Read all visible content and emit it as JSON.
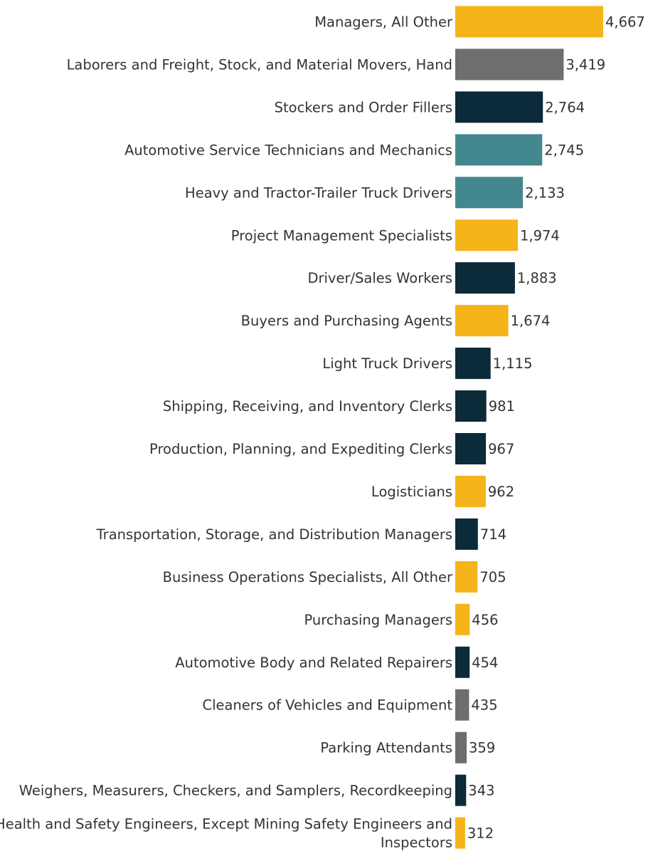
{
  "chart_data": {
    "type": "bar",
    "orientation": "horizontal",
    "title": "",
    "xlabel": "",
    "ylabel": "",
    "xlim": [
      0,
      4667
    ],
    "grid": false,
    "legend": "none",
    "categories": [
      "Managers, All Other",
      "Laborers and Freight, Stock, and Material Movers, Hand",
      "Stockers and Order Fillers",
      "Automotive Service Technicians and Mechanics",
      "Heavy and Tractor-Trailer Truck Drivers",
      "Project Management Specialists",
      "Driver/Sales Workers",
      "Buyers and Purchasing Agents",
      "Light Truck Drivers",
      "Shipping, Receiving, and Inventory Clerks",
      "Production, Planning, and Expediting Clerks",
      "Logisticians",
      "Transportation, Storage, and Distribution Managers",
      "Business Operations Specialists, All Other",
      "Purchasing Managers",
      "Automotive Body and Related Repairers",
      "Cleaners of Vehicles and Equipment",
      "Parking Attendants",
      "Weighers, Measurers, Checkers, and Samplers, Recordkeeping",
      "Health and Safety Engineers, Except Mining Safety Engineers and Inspectors"
    ],
    "values": [
      4667,
      3419,
      2764,
      2745,
      2133,
      1974,
      1883,
      1674,
      1115,
      981,
      967,
      962,
      714,
      705,
      456,
      454,
      435,
      359,
      343,
      312
    ],
    "value_labels": [
      "4,667",
      "3,419",
      "2,764",
      "2,745",
      "2,133",
      "1,974",
      "1,883",
      "1,674",
      "1,115",
      "981",
      "967",
      "962",
      "714",
      "705",
      "456",
      "454",
      "435",
      "359",
      "343",
      "312"
    ],
    "category_lines": [
      [
        "Managers, All Other"
      ],
      [
        "Laborers and Freight, Stock, and Material Movers, Hand"
      ],
      [
        "Stockers and Order Fillers"
      ],
      [
        "Automotive Service Technicians and Mechanics"
      ],
      [
        "Heavy and Tractor-Trailer Truck Drivers"
      ],
      [
        "Project Management Specialists"
      ],
      [
        "Driver/Sales Workers"
      ],
      [
        "Buyers and Purchasing Agents"
      ],
      [
        "Light Truck Drivers"
      ],
      [
        "Shipping, Receiving, and Inventory Clerks"
      ],
      [
        "Production, Planning, and Expediting Clerks"
      ],
      [
        "Logisticians"
      ],
      [
        "Transportation, Storage, and Distribution Managers"
      ],
      [
        "Business Operations Specialists, All Other"
      ],
      [
        "Purchasing Managers"
      ],
      [
        "Automotive Body and Related Repairers"
      ],
      [
        "Cleaners of Vehicles and Equipment"
      ],
      [
        "Parking Attendants"
      ],
      [
        "Weighers, Measurers, Checkers, and Samplers, Recordkeeping"
      ],
      [
        "Health and Safety Engineers, Except Mining Safety Engineers and",
        "Inspectors"
      ]
    ],
    "colors": [
      "#F4B41A",
      "#6E6E6E",
      "#0B2A3A",
      "#43888F",
      "#43888F",
      "#F4B41A",
      "#0B2A3A",
      "#F4B41A",
      "#0B2A3A",
      "#0B2A3A",
      "#0B2A3A",
      "#F4B41A",
      "#0B2A3A",
      "#F4B41A",
      "#F4B41A",
      "#0B2A3A",
      "#6E6E6E",
      "#6E6E6E",
      "#0B2A3A",
      "#F4B41A"
    ]
  }
}
